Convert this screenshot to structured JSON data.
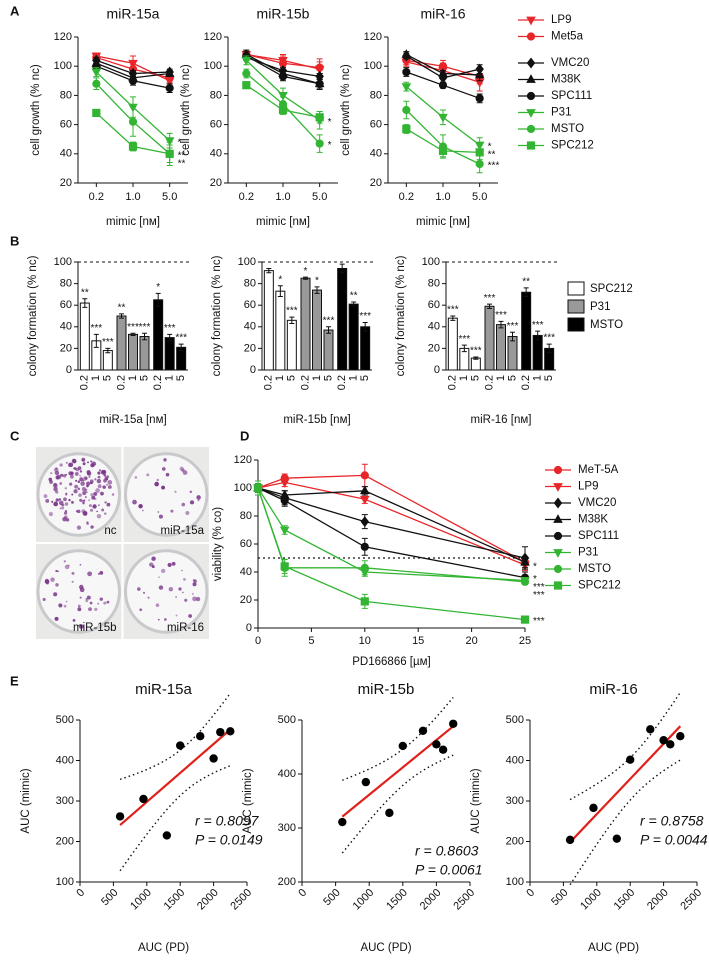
{
  "chart_data": [
    {
      "panel": "A",
      "type": "line",
      "title": "miR-15a",
      "x_label": "mimic [nᴍ]",
      "y_label": "cell growth (% nc)",
      "categories": [
        "0.2",
        "1.0",
        "5.0"
      ],
      "ylim": [
        20,
        120
      ],
      "yticks": [
        20,
        40,
        60,
        80,
        100,
        120
      ],
      "series": [
        {
          "color": "#e8262a",
          "marker": "triangle-down",
          "values": [
            107,
            102,
            90
          ],
          "errors": [
            2,
            5,
            3
          ]
        },
        {
          "color": "#e8262a",
          "marker": "circle",
          "values": [
            106,
            98,
            92
          ],
          "errors": [
            2,
            3,
            3
          ]
        },
        {
          "color": "#111111",
          "marker": "diamond",
          "values": [
            104,
            95,
            96
          ],
          "errors": [
            2,
            2,
            2
          ]
        },
        {
          "color": "#111111",
          "marker": "triangle",
          "values": [
            102,
            92,
            95
          ],
          "errors": [
            2,
            2,
            2
          ]
        },
        {
          "color": "#111111",
          "marker": "circle",
          "values": [
            100,
            90,
            85
          ],
          "errors": [
            2,
            3,
            3
          ]
        },
        {
          "color": "#33b533",
          "marker": "triangle-down",
          "values": [
            96,
            72,
            49
          ],
          "errors": [
            3,
            7,
            5
          ],
          "annotation": "*"
        },
        {
          "color": "#33b533",
          "marker": "circle",
          "values": [
            88,
            62,
            40
          ],
          "errors": [
            4,
            10,
            8
          ],
          "annotation": "**"
        },
        {
          "color": "#33b533",
          "marker": "square",
          "values": [
            68,
            45,
            40
          ],
          "errors": [
            2,
            3,
            6
          ],
          "annotation": "**"
        }
      ]
    },
    {
      "type": "line",
      "title": "miR-15b",
      "x_label": "mimic [nᴍ]",
      "y_label": "cell growth (% nc)",
      "categories": [
        "0.2",
        "1.0",
        "5.0"
      ],
      "ylim": [
        20,
        120
      ],
      "yticks": [
        20,
        40,
        60,
        80,
        100,
        120
      ],
      "series": [
        {
          "color": "#e8262a",
          "marker": "triangle-down",
          "values": [
            108,
            104,
            98
          ],
          "errors": [
            3,
            4,
            7
          ]
        },
        {
          "color": "#e8262a",
          "marker": "circle",
          "values": [
            108,
            102,
            99
          ],
          "errors": [
            2,
            5,
            4
          ]
        },
        {
          "color": "#111111",
          "marker": "diamond",
          "values": [
            106,
            97,
            93
          ],
          "errors": [
            2,
            2,
            2
          ]
        },
        {
          "color": "#111111",
          "marker": "triangle",
          "values": [
            108,
            95,
            88
          ],
          "errors": [
            3,
            2,
            4
          ]
        },
        {
          "color": "#111111",
          "marker": "circle",
          "values": [
            107,
            93,
            88
          ],
          "errors": [
            3,
            3,
            3
          ]
        },
        {
          "color": "#33b533",
          "marker": "triangle-down",
          "values": [
            104,
            80,
            63
          ],
          "errors": [
            3,
            5,
            6
          ],
          "annotation": "*"
        },
        {
          "color": "#33b533",
          "marker": "circle",
          "values": [
            95,
            74,
            47
          ],
          "errors": [
            3,
            5,
            6
          ],
          "annotation": "*"
        },
        {
          "color": "#33b533",
          "marker": "square",
          "values": [
            87,
            70,
            65
          ],
          "errors": [
            2,
            3,
            4
          ]
        }
      ]
    },
    {
      "type": "line",
      "title": "miR-16",
      "x_label": "mimic [nᴍ]",
      "y_label": "cell growth (% nc)",
      "categories": [
        "0.2",
        "1.0",
        "5.0"
      ],
      "ylim": [
        20,
        120
      ],
      "yticks": [
        20,
        40,
        60,
        80,
        100,
        120
      ],
      "legend": "right",
      "series": [
        {
          "name": "LP9",
          "color": "#e8262a",
          "marker": "triangle-down",
          "values": [
            103,
            97,
            89
          ],
          "errors": [
            3,
            5,
            6
          ]
        },
        {
          "name": "Met5a",
          "color": "#e8262a",
          "marker": "circle",
          "values": [
            104,
            100,
            93
          ],
          "errors": [
            3,
            4,
            5
          ]
        },
        {
          "name": "VMC20",
          "color": "#111111",
          "marker": "diamond",
          "values": [
            107,
            92,
            98
          ],
          "errors": [
            2,
            3,
            3
          ]
        },
        {
          "name": "M38K",
          "color": "#111111",
          "marker": "triangle",
          "values": [
            108,
            95,
            94
          ],
          "errors": [
            2,
            2,
            4
          ]
        },
        {
          "name": "SPC111",
          "color": "#111111",
          "marker": "circle",
          "values": [
            96,
            87,
            78
          ],
          "errors": [
            3,
            2,
            3
          ]
        },
        {
          "name": "P31",
          "color": "#33b533",
          "marker": "triangle-down",
          "values": [
            86,
            65,
            46
          ],
          "errors": [
            3,
            5,
            5
          ],
          "annotation": "*"
        },
        {
          "name": "MSTO",
          "color": "#33b533",
          "marker": "circle",
          "values": [
            70,
            45,
            33
          ],
          "errors": [
            6,
            8,
            6
          ],
          "annotation": "***"
        },
        {
          "name": "SPC212",
          "color": "#33b533",
          "marker": "square",
          "values": [
            57,
            42,
            41
          ],
          "errors": [
            3,
            4,
            5
          ],
          "annotation": "**"
        }
      ]
    },
    {
      "panel": "B",
      "type": "bar",
      "x_label": "miR-15a [nᴍ]",
      "y_label": "colony formation (% nc)",
      "categories": [
        "0.2",
        "1",
        "5"
      ],
      "ylim": [
        0,
        100
      ],
      "yticks": [
        0,
        20,
        40,
        60,
        80,
        100
      ],
      "refline": 100,
      "series": [
        {
          "color": "#ffffff",
          "values": [
            62,
            27,
            18
          ],
          "errors": [
            4,
            6,
            2
          ],
          "annotations": [
            "**",
            "***",
            "***"
          ]
        },
        {
          "color": "#999999",
          "values": [
            50,
            33,
            31
          ],
          "errors": [
            2,
            1,
            3
          ],
          "annotations": [
            "**",
            "***",
            "***"
          ]
        },
        {
          "color": "#000000",
          "values": [
            65,
            30,
            21
          ],
          "errors": [
            6,
            3,
            3
          ],
          "annotations": [
            "*",
            "***",
            "***"
          ]
        }
      ]
    },
    {
      "type": "bar",
      "x_label": "miR-15b [nᴍ]",
      "y_label": "colony formation (% nc)",
      "categories": [
        "0.2",
        "1",
        "5"
      ],
      "ylim": [
        0,
        100
      ],
      "yticks": [
        0,
        20,
        40,
        60,
        80,
        100
      ],
      "refline": 100,
      "series": [
        {
          "color": "#ffffff",
          "values": [
            92,
            73,
            46
          ],
          "errors": [
            2,
            5,
            3
          ],
          "annotations": [
            null,
            "*",
            "***"
          ]
        },
        {
          "color": "#999999",
          "values": [
            85,
            74,
            37
          ],
          "errors": [
            1,
            3,
            3
          ],
          "annotations": [
            "*",
            "*",
            "***"
          ]
        },
        {
          "color": "#000000",
          "values": [
            94,
            61,
            40
          ],
          "errors": [
            4,
            2,
            4
          ],
          "annotations": [
            null,
            "**",
            "***"
          ]
        }
      ]
    },
    {
      "type": "bar",
      "x_label": "miR-16 [nᴍ]",
      "y_label": "colony formation (% nc)",
      "categories": [
        "0.2",
        "1",
        "5"
      ],
      "ylim": [
        0,
        100
      ],
      "yticks": [
        0,
        20,
        40,
        60,
        80,
        100
      ],
      "refline": 100,
      "legend": "right",
      "series": [
        {
          "name": "SPC212",
          "color": "#ffffff",
          "values": [
            48,
            20,
            11
          ],
          "errors": [
            2,
            3,
            1
          ],
          "annotations": [
            "***",
            "***",
            "***"
          ]
        },
        {
          "name": "P31",
          "color": "#999999",
          "values": [
            59,
            42,
            31
          ],
          "errors": [
            2,
            3,
            4
          ],
          "annotations": [
            "***",
            "***",
            "***"
          ]
        },
        {
          "name": "MSTO",
          "color": "#000000",
          "values": [
            72,
            32,
            20
          ],
          "errors": [
            4,
            4,
            4
          ],
          "annotations": [
            "**",
            "***",
            "***"
          ]
        }
      ]
    },
    {
      "panel": "C",
      "type": "image",
      "labels": [
        "nc",
        "miR-15a",
        "miR-15b",
        "miR-16"
      ]
    },
    {
      "panel": "D",
      "type": "line",
      "x_label": "PD166866 [µᴍ]",
      "y_label": "viability (% co)",
      "x": [
        0,
        2.5,
        10,
        25
      ],
      "xlim": [
        0,
        25
      ],
      "xticks": [
        0,
        5,
        10,
        15,
        20,
        25
      ],
      "ylim": [
        0,
        120
      ],
      "yticks": [
        0,
        20,
        40,
        60,
        80,
        100,
        120
      ],
      "refline": 50,
      "legend": "right",
      "series": [
        {
          "name": "MeT-5A",
          "color": "#e8262a",
          "marker": "circle",
          "values": [
            100,
            107,
            109,
            47
          ],
          "errors": [
            3,
            3,
            8,
            4
          ]
        },
        {
          "name": "LP9",
          "color": "#e8262a",
          "marker": "triangle-down",
          "values": [
            100,
            104,
            92,
            45
          ],
          "errors": [
            3,
            3,
            3,
            4
          ],
          "annotation": "*"
        },
        {
          "name": "VMC20",
          "color": "#111111",
          "marker": "diamond",
          "values": [
            100,
            93,
            76,
            50
          ],
          "errors": [
            3,
            5,
            5,
            8
          ]
        },
        {
          "name": "M38K",
          "color": "#111111",
          "marker": "triangle",
          "values": [
            100,
            95,
            98,
            47
          ],
          "errors": [
            3,
            3,
            3,
            4
          ]
        },
        {
          "name": "SPC111",
          "color": "#111111",
          "marker": "circle",
          "values": [
            100,
            91,
            58,
            36
          ],
          "errors": [
            3,
            4,
            6,
            4
          ],
          "annotation": "*"
        },
        {
          "name": "P31",
          "color": "#33b533",
          "marker": "triangle-down",
          "values": [
            100,
            70,
            40,
            34
          ],
          "errors": [
            3,
            3,
            3,
            2
          ],
          "annotation": "***"
        },
        {
          "name": "MSTO",
          "color": "#33b533",
          "marker": "circle",
          "values": [
            100,
            43,
            43,
            33
          ],
          "errors": [
            3,
            6,
            5,
            2
          ],
          "annotation": "***"
        },
        {
          "name": "SPC212",
          "color": "#33b533",
          "marker": "square",
          "values": [
            100,
            44,
            19,
            6
          ],
          "errors": [
            5,
            5,
            5,
            1
          ],
          "annotation": "***"
        }
      ]
    },
    {
      "panel": "E",
      "type": "scatter",
      "title": "miR-15a",
      "x_label": "AUC (PD)",
      "y_label": "AUC (mimic)",
      "x": [
        600,
        950,
        1300,
        1500,
        1800,
        2000,
        2100,
        2250
      ],
      "values": [
        262,
        305,
        215,
        437,
        460,
        405,
        470,
        472
      ],
      "xlim": [
        0,
        2500
      ],
      "xticks": [
        0,
        500,
        1000,
        1500,
        2000,
        2500
      ],
      "ylim": [
        100,
        500
      ],
      "yticks": [
        100,
        200,
        300,
        400,
        500
      ],
      "color": "#000000",
      "fit_color": "#e0201b",
      "annotations": [
        "r = 0.8097",
        "P = 0.0149"
      ]
    },
    {
      "type": "scatter",
      "title": "miR-15b",
      "x_label": "AUC (PD)",
      "y_label": "AUC (mimic)",
      "x": [
        600,
        950,
        1300,
        1500,
        1800,
        2000,
        2100,
        2250
      ],
      "values": [
        311,
        385,
        328,
        452,
        480,
        455,
        445,
        493
      ],
      "xlim": [
        0,
        2500
      ],
      "xticks": [
        0,
        500,
        1000,
        1500,
        2000,
        2500
      ],
      "ylim": [
        200,
        500
      ],
      "yticks": [
        200,
        300,
        400,
        500
      ],
      "color": "#000000",
      "fit_color": "#e0201b",
      "annotations": [
        "r = 0.8603",
        "P = 0.0061"
      ]
    },
    {
      "type": "scatter",
      "title": "miR-16",
      "x_label": "AUC (PD)",
      "y_label": "AUC (mimic)",
      "x": [
        600,
        950,
        1300,
        1500,
        1800,
        2000,
        2100,
        2250
      ],
      "values": [
        204,
        283,
        207,
        402,
        477,
        450,
        440,
        460
      ],
      "xlim": [
        0,
        2500
      ],
      "xticks": [
        0,
        500,
        1000,
        1500,
        2000,
        2500
      ],
      "ylim": [
        100,
        500
      ],
      "yticks": [
        100,
        200,
        300,
        400,
        500
      ],
      "color": "#000000",
      "fit_color": "#e0201b",
      "annotations": [
        "r = 0.8758",
        "P = 0.0044"
      ]
    }
  ]
}
